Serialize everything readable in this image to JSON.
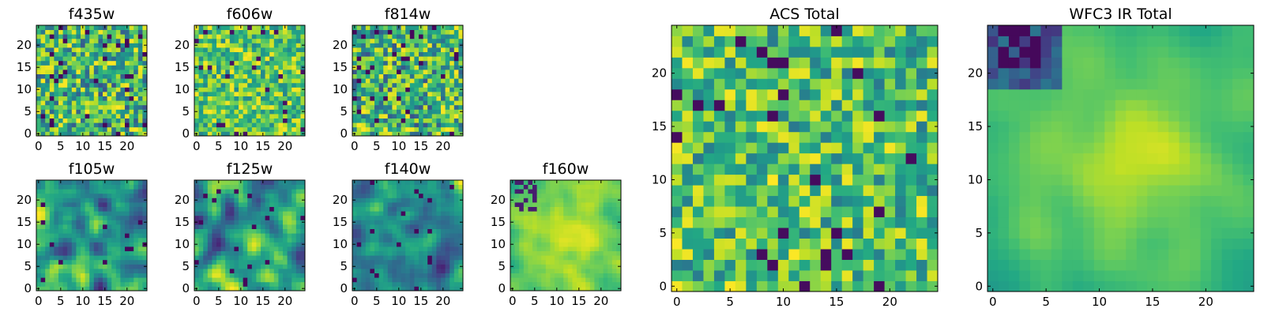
{
  "chart_data": [
    {
      "type": "heatmap",
      "title": "f435w",
      "grid_size": 25,
      "colormap": "viridis",
      "xlim": [
        0,
        25
      ],
      "ylim": [
        0,
        25
      ],
      "xticks": [
        0,
        5,
        10,
        15,
        20
      ],
      "yticks": [
        0,
        5,
        10,
        15,
        20
      ],
      "xtick_labels": [
        "0",
        "5",
        "10",
        "15",
        "20"
      ],
      "ytick_labels": [
        "0",
        "5",
        "10",
        "15",
        "20"
      ],
      "pattern": "uniform-noise",
      "value_range": [
        0,
        1
      ]
    },
    {
      "type": "heatmap",
      "title": "f606w",
      "grid_size": 25,
      "colormap": "viridis",
      "xlim": [
        0,
        25
      ],
      "ylim": [
        0,
        25
      ],
      "xticks": [
        0,
        5,
        10,
        15,
        20
      ],
      "yticks": [
        0,
        5,
        10,
        15,
        20
      ],
      "xtick_labels": [
        "0",
        "5",
        "10",
        "15",
        "20"
      ],
      "ytick_labels": [
        "0",
        "5",
        "10",
        "15",
        "20"
      ],
      "pattern": "uniform-noise-bright",
      "value_range": [
        0,
        1
      ]
    },
    {
      "type": "heatmap",
      "title": "f814w",
      "grid_size": 25,
      "colormap": "viridis",
      "xlim": [
        0,
        25
      ],
      "ylim": [
        0,
        25
      ],
      "xticks": [
        0,
        5,
        10,
        15,
        20
      ],
      "yticks": [
        0,
        5,
        10,
        15,
        20
      ],
      "xtick_labels": [
        "0",
        "5",
        "10",
        "15",
        "20"
      ],
      "ytick_labels": [
        "0",
        "5",
        "10",
        "15",
        "20"
      ],
      "pattern": "uniform-noise",
      "value_range": [
        0,
        1
      ]
    },
    {
      "type": "heatmap",
      "title": "f105w",
      "grid_size": 25,
      "colormap": "viridis",
      "xlim": [
        0,
        25
      ],
      "ylim": [
        0,
        25
      ],
      "xticks": [
        0,
        5,
        10,
        15,
        20
      ],
      "yticks": [
        0,
        5,
        10,
        15,
        20
      ],
      "xtick_labels": [
        "0",
        "5",
        "10",
        "15",
        "20"
      ],
      "ytick_labels": [
        "0",
        "5",
        "10",
        "15",
        "20"
      ],
      "pattern": "smooth-blobs",
      "value_range": [
        0,
        1
      ]
    },
    {
      "type": "heatmap",
      "title": "f125w",
      "grid_size": 25,
      "colormap": "viridis",
      "xlim": [
        0,
        25
      ],
      "ylim": [
        0,
        25
      ],
      "xticks": [
        0,
        5,
        10,
        15,
        20
      ],
      "yticks": [
        0,
        5,
        10,
        15,
        20
      ],
      "xtick_labels": [
        "0",
        "5",
        "10",
        "15",
        "20"
      ],
      "ytick_labels": [
        "0",
        "5",
        "10",
        "15",
        "20"
      ],
      "pattern": "smooth-blobs",
      "value_range": [
        0,
        1
      ]
    },
    {
      "type": "heatmap",
      "title": "f140w",
      "grid_size": 25,
      "colormap": "viridis",
      "xlim": [
        0,
        25
      ],
      "ylim": [
        0,
        25
      ],
      "xticks": [
        0,
        5,
        10,
        15,
        20
      ],
      "yticks": [
        0,
        5,
        10,
        15,
        20
      ],
      "xtick_labels": [
        "0",
        "5",
        "10",
        "15",
        "20"
      ],
      "ytick_labels": [
        "0",
        "5",
        "10",
        "15",
        "20"
      ],
      "pattern": "smooth-blobs",
      "value_range": [
        0,
        1
      ]
    },
    {
      "type": "heatmap",
      "title": "f160w",
      "grid_size": 25,
      "colormap": "viridis",
      "xlim": [
        0,
        25
      ],
      "ylim": [
        0,
        25
      ],
      "xticks": [
        0,
        5,
        10,
        15,
        20
      ],
      "yticks": [
        0,
        5,
        10,
        15,
        20
      ],
      "xtick_labels": [
        "0",
        "5",
        "10",
        "15",
        "20"
      ],
      "ytick_labels": [
        "0",
        "5",
        "10",
        "15",
        "20"
      ],
      "pattern": "smooth-bright-center",
      "value_range": [
        0,
        1
      ]
    },
    {
      "type": "heatmap",
      "title": "ACS Total",
      "grid_size": 25,
      "colormap": "viridis",
      "xlim": [
        0,
        25
      ],
      "ylim": [
        0,
        25
      ],
      "xticks": [
        0,
        5,
        10,
        15,
        20
      ],
      "yticks": [
        0,
        5,
        10,
        15,
        20
      ],
      "xtick_labels": [
        "0",
        "5",
        "10",
        "15",
        "20"
      ],
      "ytick_labels": [
        "0",
        "5",
        "10",
        "15",
        "20"
      ],
      "pattern": "uniform-noise-sparse-dark",
      "value_range": [
        0,
        1
      ]
    },
    {
      "type": "heatmap",
      "title": "WFC3 IR Total",
      "grid_size": 25,
      "colormap": "viridis",
      "xlim": [
        0,
        25
      ],
      "ylim": [
        0,
        25
      ],
      "xticks": [
        0,
        5,
        10,
        15,
        20
      ],
      "yticks": [
        0,
        5,
        10,
        15,
        20
      ],
      "xtick_labels": [
        "0",
        "5",
        "10",
        "15",
        "20"
      ],
      "ytick_labels": [
        "0",
        "5",
        "10",
        "15",
        "20"
      ],
      "pattern": "smooth-bright-center-dark-top-left",
      "value_range": [
        0,
        1
      ]
    }
  ]
}
